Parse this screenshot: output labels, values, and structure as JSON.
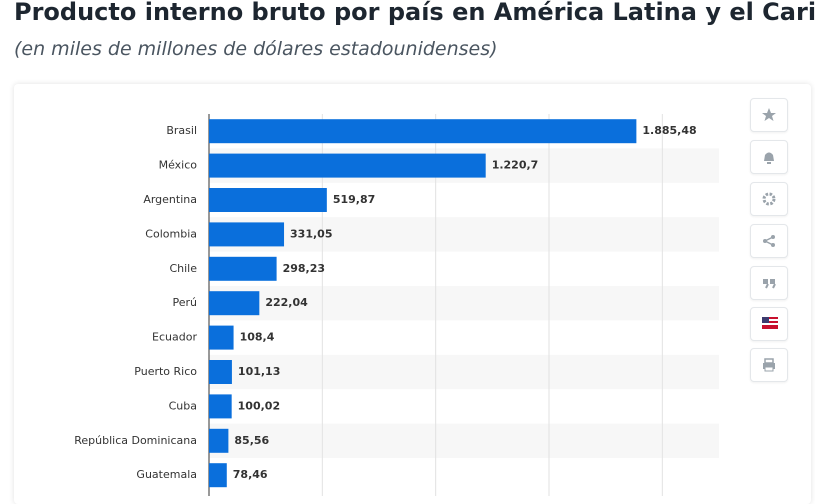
{
  "header": {
    "title": "Producto interno bruto por país en América Latina y el Caribe",
    "subtitle": "(en miles de millones de dólares estadounidenses)"
  },
  "chart_data": {
    "type": "bar",
    "orientation": "horizontal",
    "color": "#0a6fdc",
    "categories": [
      "Brasil",
      "México",
      "Argentina",
      "Colombia",
      "Chile",
      "Perú",
      "Ecuador",
      "Puerto Rico",
      "Cuba",
      "República Dominicana",
      "Guatemala"
    ],
    "values": [
      1885.48,
      1220.7,
      519.87,
      331.05,
      298.23,
      222.04,
      108.4,
      101.13,
      100.02,
      85.56,
      78.46
    ],
    "value_labels": [
      "1.885,48",
      "1.220,7",
      "519,87",
      "331,05",
      "298,23",
      "222,04",
      "108,4",
      "101,13",
      "100,02",
      "85,56",
      "78,46"
    ],
    "xlim": [
      0,
      2250
    ],
    "xticks": [
      0,
      500,
      1000,
      1500,
      2000
    ],
    "grid": true
  }
}
